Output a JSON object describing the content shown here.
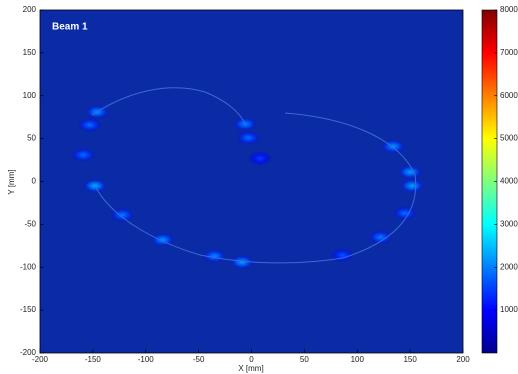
{
  "chart_data": {
    "type": "heatmap-spots",
    "title": "Beam 1",
    "xlabel": "X [mm]",
    "ylabel": "Y [mm]",
    "xlim": [
      -200,
      200
    ],
    "ylim": [
      -200,
      200
    ],
    "xticks": [
      -200,
      -150,
      -100,
      -50,
      0,
      50,
      100,
      150,
      200
    ],
    "yticks": [
      -200,
      -150,
      -100,
      -50,
      0,
      50,
      100,
      150,
      200
    ],
    "clim": [
      0,
      8000
    ],
    "cticks": [
      1000,
      2000,
      3000,
      4000,
      5000,
      6000,
      7000,
      8000
    ],
    "colormap": "jet",
    "x": [
      -146,
      -153,
      -159,
      -148,
      -122,
      -84,
      -35,
      -9,
      86,
      122,
      145,
      152,
      150,
      134,
      -6,
      -3,
      8
    ],
    "y": [
      81,
      66,
      31,
      -5,
      -39,
      -68,
      -87,
      -94,
      -86,
      -65,
      -37,
      -5,
      11,
      41,
      67,
      51,
      27
    ],
    "intensity": [
      2200,
      1900,
      1900,
      2400,
      2000,
      2200,
      2100,
      2300,
      1700,
      2000,
      1900,
      2300,
      2300,
      2200,
      2100,
      1900,
      1500
    ]
  }
}
